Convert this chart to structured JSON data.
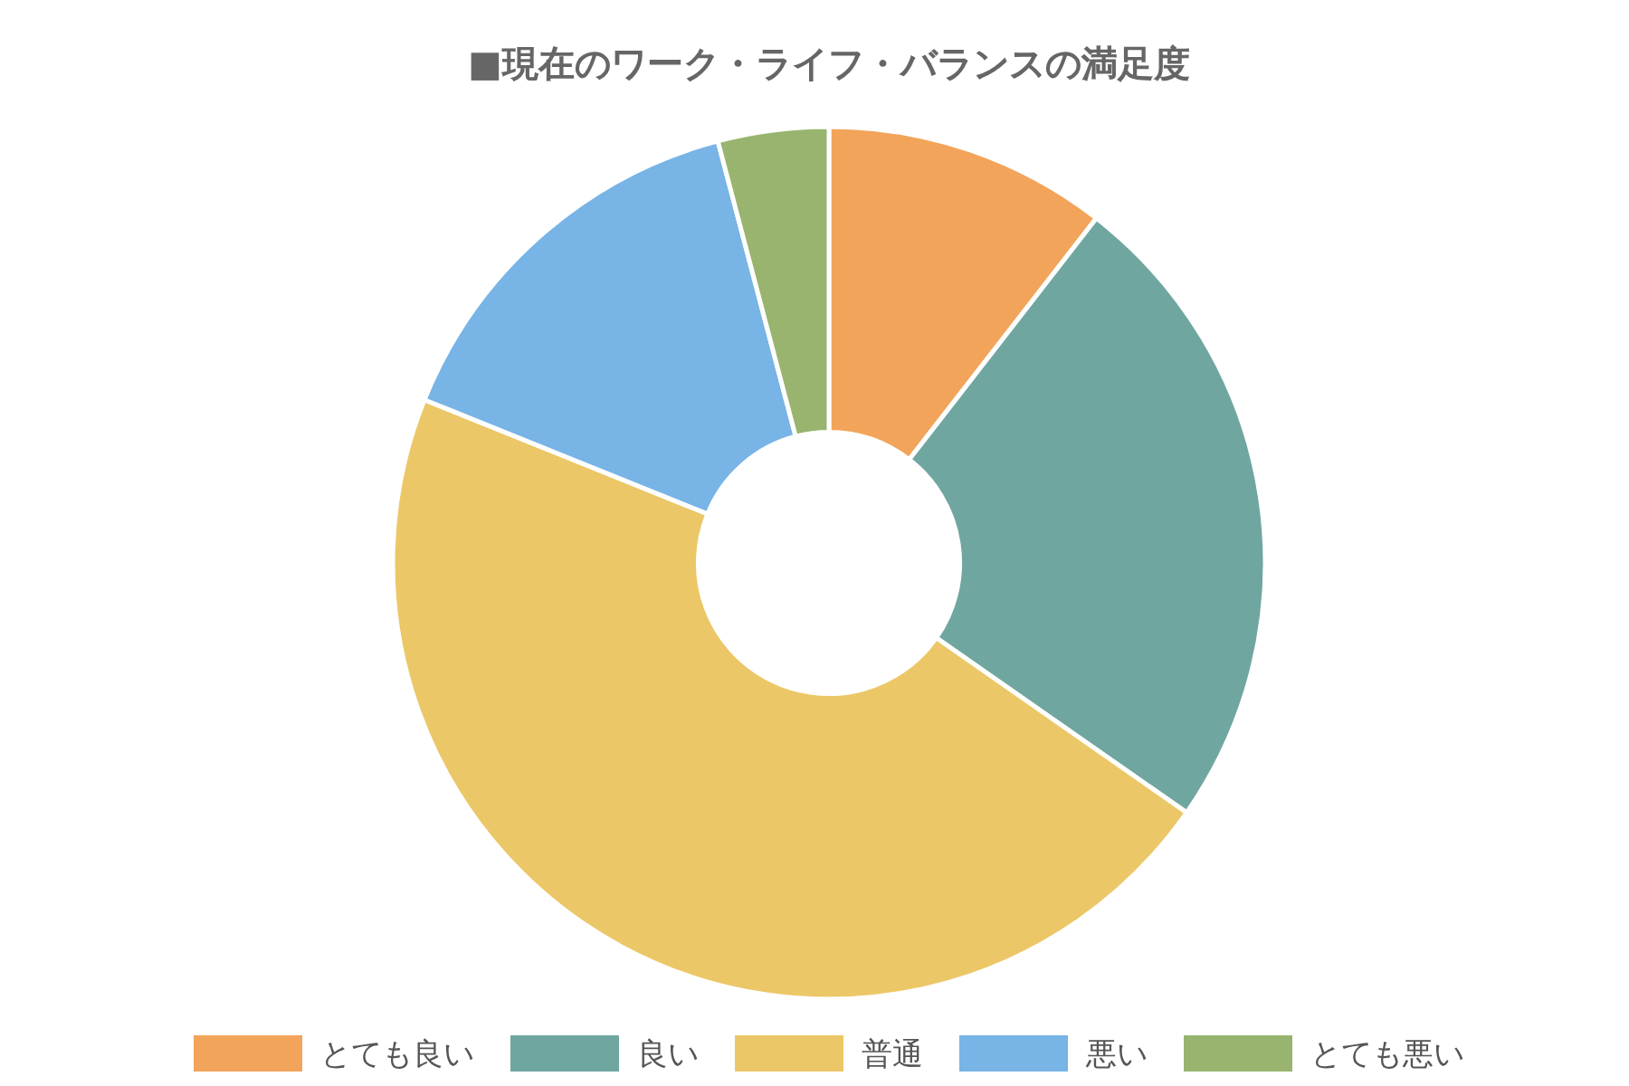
{
  "chart_data": {
    "type": "donut",
    "title": "■現在のワーク・ライフ・バランスの満足度",
    "categories": [
      "とても良い",
      "良い",
      "普通",
      "悪い",
      "とても悪い"
    ],
    "values": [
      10.5,
      24.2,
      46.4,
      14.8,
      4.1
    ],
    "colors": [
      "#f2a45a",
      "#70a6a0",
      "#ecc767",
      "#78b4e6",
      "#98b46e"
    ],
    "legend": "bottom"
  }
}
